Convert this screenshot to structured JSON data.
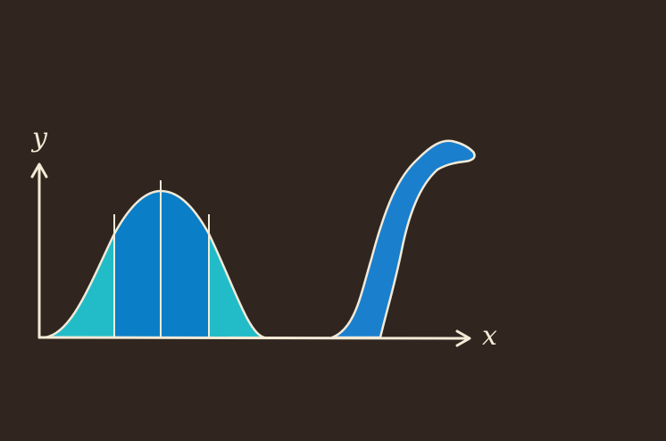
{
  "illustration": {
    "x_axis_label": "x",
    "y_axis_label": "y",
    "colors": {
      "background": "#30261f",
      "outline": "#f3ead7",
      "outer_fill": "#22bcc8",
      "inner_fill": "#0a7ec6",
      "neck_fill": "#1a7fcd"
    }
  }
}
